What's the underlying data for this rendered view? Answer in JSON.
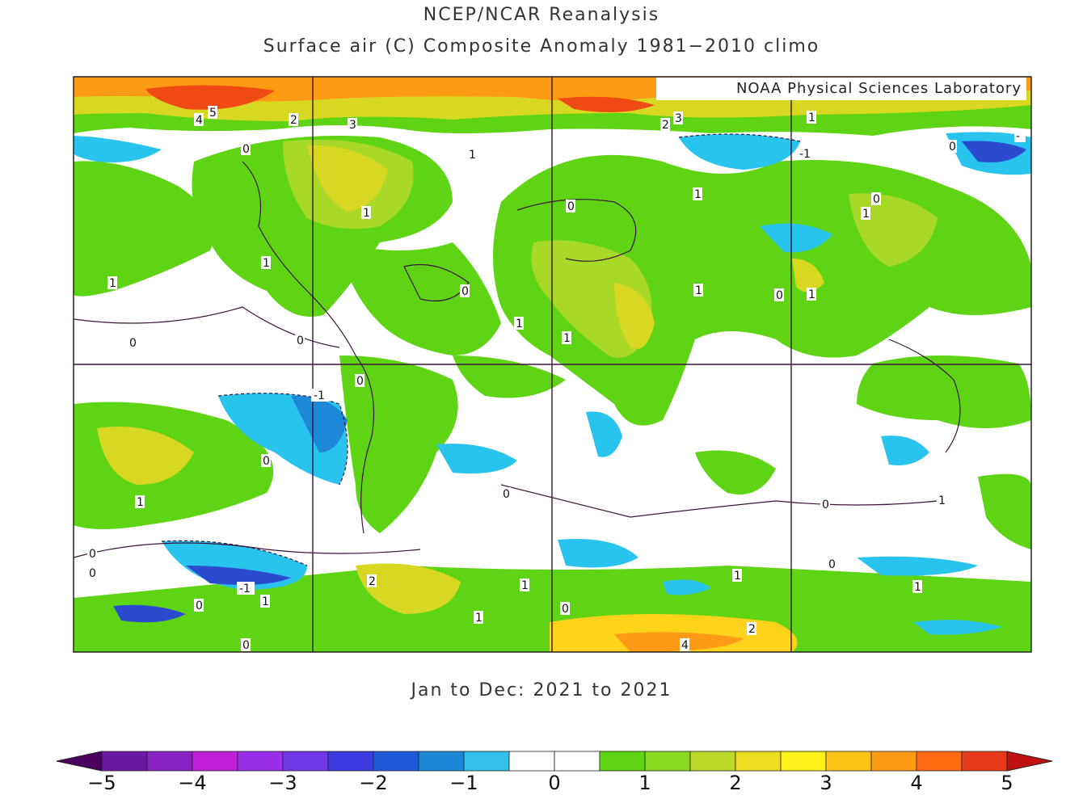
{
  "header": {
    "title": "NCEP/NCAR Reanalysis",
    "subtitle": "Surface air (C) Composite Anomaly 1981−2010 climo"
  },
  "credit": "NOAA Physical Sciences Laboratory",
  "period": "Jan to Dec: 2021 to 2021",
  "colorbar": {
    "colors": [
      "#4b0060",
      "#6a1aa0",
      "#8a22c4",
      "#c21fd8",
      "#9a2ee8",
      "#7038e6",
      "#3a3ae0",
      "#1e5ad8",
      "#1a88d6",
      "#33c0ec",
      "#ffffff",
      "#ffffff",
      "#5ed415",
      "#8ad820",
      "#bcd828",
      "#ecdc22",
      "#fff21c",
      "#ffc418",
      "#ff9a14",
      "#ff6a12",
      "#e8381a",
      "#c01010"
    ],
    "ticks": [
      "−5",
      "−4",
      "−3",
      "−2",
      "−1",
      "0",
      "1",
      "2",
      "3",
      "4",
      "5"
    ]
  },
  "map": {
    "colors": {
      "warm1": "#5ed415",
      "warm2": "#a8d828",
      "warm3": "#d8d822",
      "warm4": "#ffd21c",
      "warm5": "#ff9a14",
      "warm6": "#f04a14",
      "cool1": "#28c4ee",
      "cool2": "#1e88d8",
      "cool3": "#2a4ad0",
      "coast": "#3a1438"
    },
    "contour_labels": [
      "4",
      "5",
      "2",
      "3",
      "2",
      "3",
      "1",
      "-",
      "0",
      "1",
      "-1",
      "1",
      "0",
      "1",
      "0",
      "1",
      "1",
      "0",
      "0",
      "1",
      "1",
      "1",
      "0",
      "0",
      "1",
      "1",
      "-1",
      "0",
      "0",
      "1",
      "0",
      "0",
      "-1",
      "0",
      "0",
      "1",
      "2",
      "1",
      "1",
      "0",
      "0",
      "1",
      "0",
      "1",
      "0",
      "1",
      "2",
      "4",
      "0"
    ]
  }
}
